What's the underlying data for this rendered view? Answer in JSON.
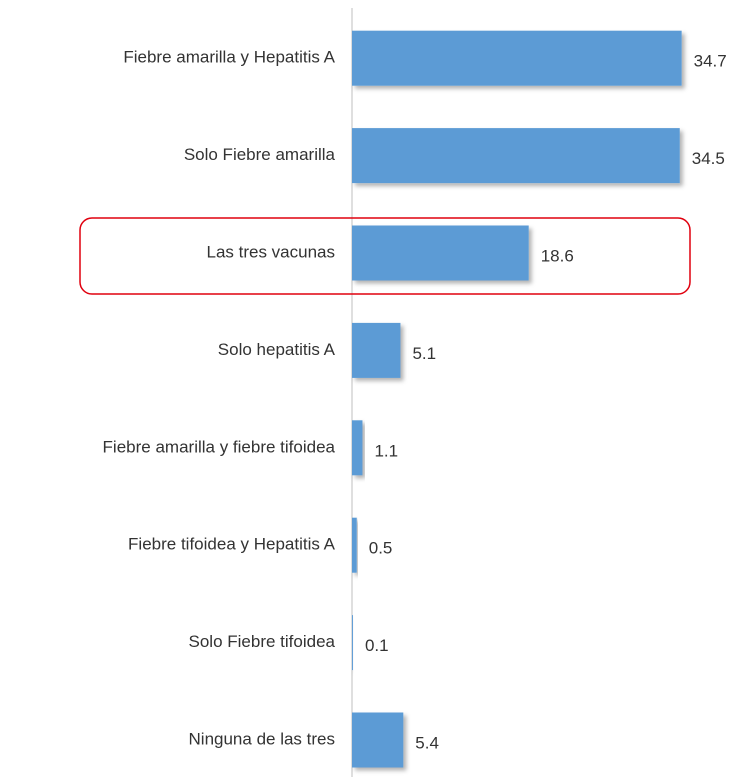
{
  "chart_data": {
    "type": "bar",
    "orientation": "horizontal",
    "categories": [
      "Fiebre amarilla y Hepatitis A",
      "Solo Fiebre amarilla",
      "Las tres vacunas",
      "Solo hepatitis A",
      "Fiebre amarilla y fiebre tifoidea",
      "Fiebre tifoidea y Hepatitis A",
      "Solo Fiebre tifoidea",
      "Ninguna de las tres"
    ],
    "values": [
      34.7,
      34.5,
      18.6,
      5.1,
      1.1,
      0.5,
      0.1,
      5.4
    ],
    "color": "#5b9bd5",
    "xlim": [
      0,
      40
    ]
  }
}
